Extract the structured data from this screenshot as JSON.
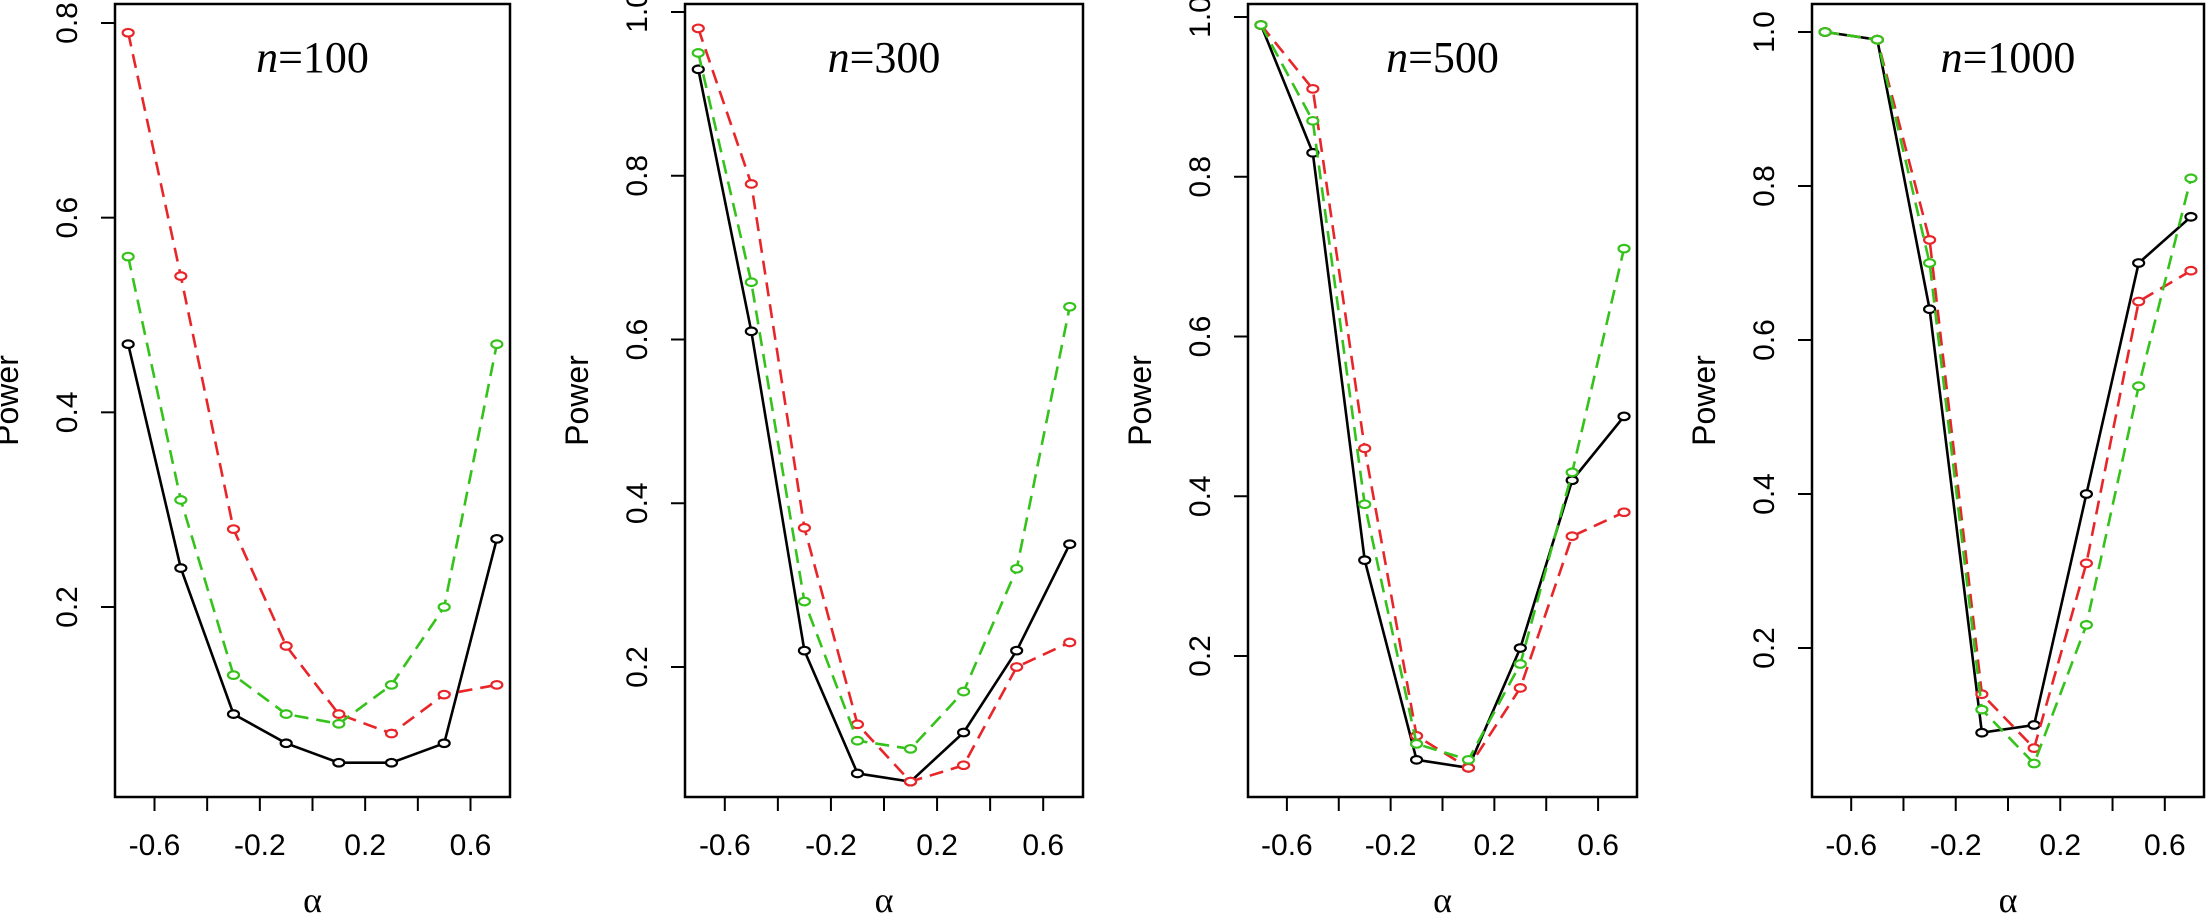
{
  "series_colors": {
    "black": "#000000",
    "red": "#e8262a",
    "green": "#35c21b"
  },
  "chart_data": [
    {
      "type": "line",
      "title_prefix": "n",
      "title_eq": "=100",
      "xlabel": "α",
      "ylabel": "Power",
      "xlim": [
        -0.75,
        0.75
      ],
      "ylim": [
        0.0,
        0.81
      ],
      "xticks": [
        -0.6,
        -0.2,
        0.2,
        0.6
      ],
      "xtick_labels": [
        "-0.6",
        "-0.2",
        "0.2",
        "0.6"
      ],
      "xminor": [
        -0.4,
        0.0,
        0.4
      ],
      "yticks": [
        0.2,
        0.4,
        0.6,
        0.8
      ],
      "ytick_labels": [
        "0.2",
        "0.4",
        "0.6",
        "0.8"
      ],
      "x": [
        -0.7,
        -0.5,
        -0.3,
        -0.1,
        0.1,
        0.3,
        0.5,
        0.7
      ],
      "series": [
        {
          "name": "black",
          "style": "solid",
          "values": [
            0.47,
            0.24,
            0.09,
            0.06,
            0.04,
            0.04,
            0.06,
            0.27
          ]
        },
        {
          "name": "red",
          "style": "dashed",
          "values": [
            0.79,
            0.54,
            0.28,
            0.16,
            0.09,
            0.07,
            0.11,
            0.12
          ]
        },
        {
          "name": "green",
          "style": "dashed",
          "values": [
            0.56,
            0.31,
            0.13,
            0.09,
            0.08,
            0.12,
            0.2,
            0.47
          ]
        }
      ]
    },
    {
      "type": "line",
      "title_prefix": "n",
      "title_eq": "=300",
      "xlabel": "α",
      "ylabel": "Power",
      "xlim": [
        -0.75,
        0.75
      ],
      "ylim": [
        0.0,
        1.0
      ],
      "xticks": [
        -0.6,
        -0.2,
        0.2,
        0.6
      ],
      "xtick_labels": [
        "-0.6",
        "-0.2",
        "0.2",
        "0.6"
      ],
      "xminor": [
        -0.4,
        0.0,
        0.4
      ],
      "yticks": [
        0.2,
        0.4,
        0.6,
        0.8,
        1.0
      ],
      "ytick_labels": [
        "0.2",
        "0.4",
        "0.6",
        "0.8",
        "1.0"
      ],
      "x": [
        -0.7,
        -0.5,
        -0.3,
        -0.1,
        0.1,
        0.3,
        0.5,
        0.7
      ],
      "series": [
        {
          "name": "black",
          "style": "solid",
          "values": [
            0.93,
            0.61,
            0.22,
            0.07,
            0.06,
            0.12,
            0.22,
            0.35
          ]
        },
        {
          "name": "red",
          "style": "dashed",
          "values": [
            0.98,
            0.79,
            0.37,
            0.13,
            0.06,
            0.08,
            0.2,
            0.23
          ]
        },
        {
          "name": "green",
          "style": "dashed",
          "values": [
            0.95,
            0.67,
            0.28,
            0.11,
            0.1,
            0.17,
            0.32,
            0.64
          ]
        }
      ]
    },
    {
      "type": "line",
      "title_prefix": "n",
      "title_eq": "=500",
      "xlabel": "α",
      "ylabel": "Power",
      "xlim": [
        -0.75,
        0.75
      ],
      "ylim": [
        0.0,
        1.0
      ],
      "xticks": [
        -0.6,
        -0.2,
        0.2,
        0.6
      ],
      "xtick_labels": [
        "-0.6",
        "-0.2",
        "0.2",
        "0.6"
      ],
      "xminor": [
        -0.4,
        0.0,
        0.4
      ],
      "yticks": [
        0.2,
        0.4,
        0.6,
        0.8,
        1.0
      ],
      "ytick_labels": [
        "0.2",
        "0.4",
        "0.6",
        "0.8",
        "1.0"
      ],
      "x": [
        -0.7,
        -0.5,
        -0.3,
        -0.1,
        0.1,
        0.3,
        0.5,
        0.7
      ],
      "series": [
        {
          "name": "black",
          "style": "solid",
          "values": [
            0.99,
            0.83,
            0.32,
            0.07,
            0.06,
            0.21,
            0.42,
            0.5
          ]
        },
        {
          "name": "red",
          "style": "dashed",
          "values": [
            0.99,
            0.91,
            0.46,
            0.1,
            0.06,
            0.16,
            0.35,
            0.38
          ]
        },
        {
          "name": "green",
          "style": "dashed",
          "values": [
            0.99,
            0.87,
            0.39,
            0.09,
            0.07,
            0.19,
            0.43,
            0.71
          ]
        }
      ]
    },
    {
      "type": "line",
      "title_prefix": "n",
      "title_eq": "=1000",
      "xlabel": "α",
      "ylabel": "Power",
      "xlim": [
        -0.75,
        0.75
      ],
      "ylim": [
        0.0,
        1.0
      ],
      "xticks": [
        -0.6,
        -0.2,
        0.2,
        0.6
      ],
      "xtick_labels": [
        "-0.6",
        "-0.2",
        "0.2",
        "0.6"
      ],
      "xminor": [
        -0.4,
        0.0,
        0.4
      ],
      "yticks": [
        0.2,
        0.4,
        0.6,
        0.8,
        1.0
      ],
      "ytick_labels": [
        "0.2",
        "0.4",
        "0.6",
        "0.8",
        "1.0"
      ],
      "x": [
        -0.7,
        -0.5,
        -0.3,
        -0.1,
        0.1,
        0.3,
        0.5,
        0.7
      ],
      "series": [
        {
          "name": "black",
          "style": "solid",
          "values": [
            1.0,
            0.99,
            0.64,
            0.09,
            0.1,
            0.4,
            0.7,
            0.76
          ]
        },
        {
          "name": "red",
          "style": "dashed",
          "values": [
            1.0,
            0.99,
            0.73,
            0.14,
            0.07,
            0.31,
            0.65,
            0.69
          ]
        },
        {
          "name": "green",
          "style": "dashed",
          "values": [
            1.0,
            0.99,
            0.7,
            0.12,
            0.05,
            0.23,
            0.54,
            0.81
          ]
        }
      ]
    }
  ]
}
